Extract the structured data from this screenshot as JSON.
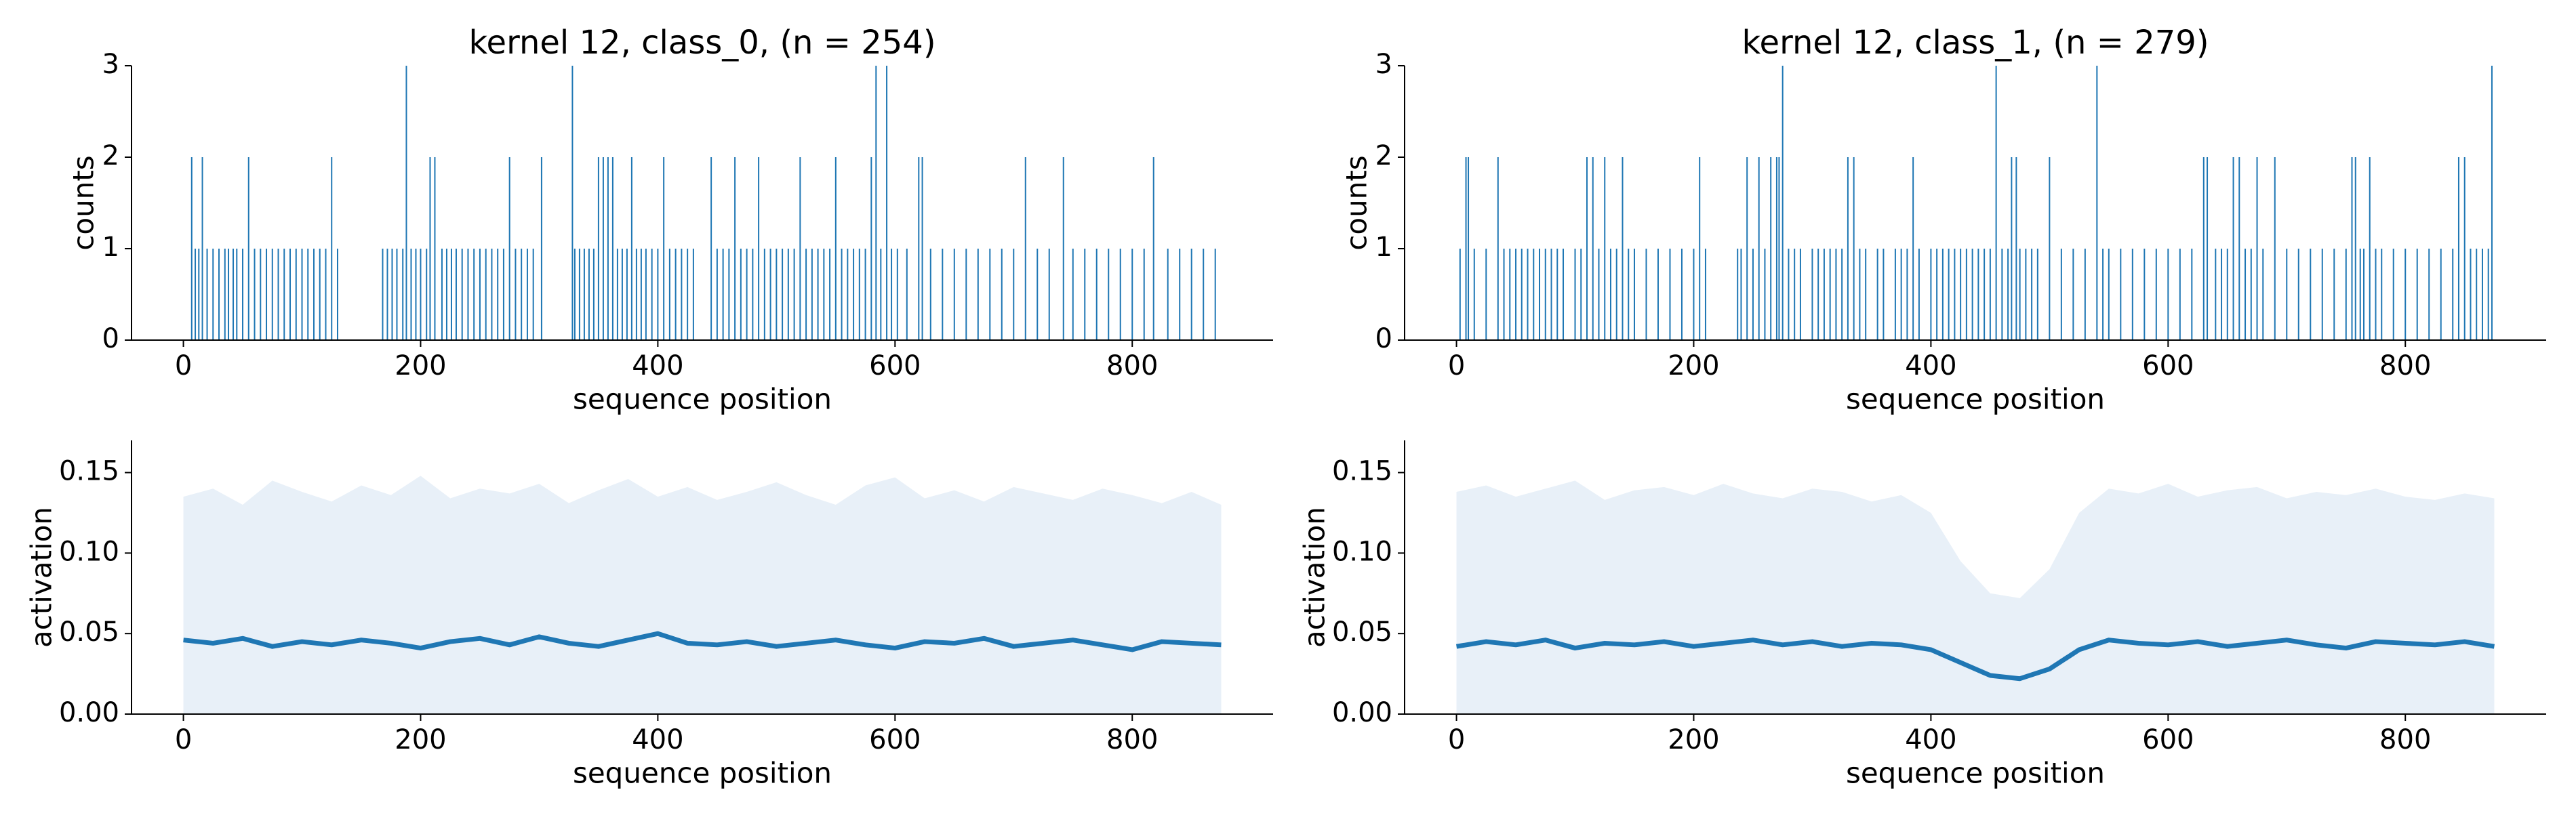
{
  "chart_data": [
    {
      "type": "bar",
      "title": "kernel 12, class_0, (n = 254)",
      "xlabel": "sequence position",
      "ylabel": "counts",
      "color": "#1f77b4",
      "x": [
        7,
        10,
        13,
        16,
        20,
        25,
        30,
        35,
        38,
        42,
        45,
        50,
        55,
        60,
        65,
        70,
        75,
        80,
        85,
        90,
        95,
        100,
        105,
        110,
        115,
        120,
        125,
        130,
        168,
        172,
        176,
        180,
        185,
        188,
        192,
        196,
        200,
        205,
        208,
        212,
        218,
        222,
        226,
        230,
        235,
        240,
        245,
        250,
        255,
        260,
        265,
        270,
        275,
        280,
        285,
        290,
        295,
        302,
        328,
        330,
        334,
        338,
        342,
        346,
        350,
        354,
        358,
        362,
        366,
        370,
        374,
        378,
        382,
        386,
        390,
        395,
        400,
        405,
        410,
        415,
        420,
        425,
        430,
        445,
        450,
        455,
        460,
        465,
        470,
        475,
        480,
        485,
        490,
        495,
        500,
        505,
        510,
        515,
        520,
        525,
        530,
        535,
        540,
        545,
        550,
        555,
        560,
        565,
        570,
        575,
        580,
        584,
        588,
        593,
        597,
        602,
        610,
        620,
        623,
        630,
        640,
        650,
        660,
        670,
        680,
        690,
        700,
        710,
        720,
        730,
        742,
        750,
        760,
        770,
        780,
        790,
        800,
        810,
        818,
        830,
        840,
        850,
        860,
        870
      ],
      "values": [
        2,
        1,
        1,
        2,
        1,
        1,
        1,
        1,
        1,
        1,
        1,
        1,
        2,
        1,
        1,
        1,
        1,
        1,
        1,
        1,
        1,
        1,
        1,
        1,
        1,
        1,
        2,
        1,
        1,
        1,
        1,
        1,
        1,
        3,
        1,
        1,
        1,
        1,
        2,
        2,
        1,
        1,
        1,
        1,
        1,
        1,
        1,
        1,
        1,
        1,
        1,
        1,
        2,
        1,
        1,
        1,
        1,
        2,
        3,
        1,
        1,
        1,
        1,
        1,
        2,
        2,
        2,
        2,
        1,
        1,
        1,
        2,
        1,
        1,
        1,
        1,
        1,
        2,
        1,
        1,
        1,
        1,
        1,
        2,
        1,
        1,
        1,
        2,
        1,
        1,
        1,
        2,
        1,
        1,
        1,
        1,
        1,
        1,
        2,
        1,
        1,
        1,
        1,
        1,
        2,
        1,
        1,
        1,
        1,
        1,
        2,
        3,
        1,
        3,
        1,
        1,
        1,
        2,
        2,
        1,
        1,
        1,
        1,
        1,
        1,
        1,
        1,
        2,
        1,
        1,
        2,
        1,
        1,
        1,
        1,
        1,
        1,
        1,
        2,
        1,
        1,
        1,
        1,
        1
      ],
      "xlim": [
        -43.75,
        918.75
      ],
      "ylim": [
        0,
        3
      ],
      "xticks": [
        0,
        200,
        400,
        600,
        800
      ],
      "yticks": [
        0,
        1,
        2,
        3
      ]
    },
    {
      "type": "bar",
      "title": "kernel 12, class_1, (n = 279)",
      "xlabel": "sequence position",
      "ylabel": "counts",
      "color": "#1f77b4",
      "x": [
        3,
        8,
        10,
        15,
        25,
        35,
        40,
        45,
        50,
        55,
        60,
        65,
        70,
        75,
        80,
        85,
        90,
        100,
        105,
        110,
        115,
        120,
        125,
        130,
        135,
        140,
        145,
        150,
        160,
        170,
        180,
        190,
        200,
        205,
        210,
        237,
        240,
        245,
        250,
        255,
        260,
        265,
        270,
        272,
        275,
        280,
        285,
        290,
        300,
        305,
        310,
        315,
        320,
        325,
        330,
        335,
        340,
        345,
        355,
        360,
        370,
        375,
        380,
        385,
        390,
        400,
        405,
        410,
        415,
        420,
        425,
        430,
        435,
        440,
        445,
        450,
        455,
        460,
        465,
        468,
        472,
        475,
        480,
        485,
        490,
        500,
        510,
        520,
        530,
        540,
        545,
        550,
        560,
        570,
        580,
        590,
        600,
        610,
        620,
        630,
        633,
        640,
        645,
        650,
        655,
        660,
        665,
        670,
        675,
        680,
        690,
        700,
        710,
        720,
        730,
        740,
        750,
        755,
        758,
        762,
        765,
        770,
        775,
        780,
        790,
        800,
        810,
        820,
        830,
        840,
        845,
        850,
        855,
        860,
        865,
        870,
        873
      ],
      "values": [
        1,
        2,
        2,
        1,
        1,
        2,
        1,
        1,
        1,
        1,
        1,
        1,
        1,
        1,
        1,
        1,
        1,
        1,
        1,
        2,
        2,
        1,
        2,
        1,
        1,
        2,
        1,
        1,
        1,
        1,
        1,
        1,
        1,
        2,
        1,
        1,
        1,
        2,
        1,
        2,
        1,
        2,
        2,
        2,
        3,
        1,
        1,
        1,
        1,
        1,
        1,
        1,
        1,
        1,
        2,
        2,
        1,
        1,
        1,
        1,
        1,
        1,
        1,
        2,
        1,
        1,
        1,
        1,
        1,
        1,
        1,
        1,
        1,
        1,
        1,
        1,
        3,
        1,
        1,
        2,
        2,
        1,
        1,
        1,
        1,
        2,
        1,
        1,
        1,
        3,
        1,
        1,
        1,
        1,
        1,
        1,
        1,
        1,
        1,
        2,
        2,
        1,
        1,
        1,
        2,
        2,
        1,
        1,
        2,
        1,
        2,
        1,
        1,
        1,
        1,
        1,
        1,
        2,
        2,
        1,
        1,
        2,
        1,
        1,
        1,
        1,
        1,
        1,
        1,
        1,
        2,
        2,
        1,
        1,
        1,
        1,
        3
      ],
      "xlim": [
        -43.75,
        918.75
      ],
      "ylim": [
        0,
        3
      ],
      "xticks": [
        0,
        200,
        400,
        600,
        800
      ],
      "yticks": [
        0,
        1,
        2,
        3
      ]
    },
    {
      "type": "line",
      "xlabel": "sequence position",
      "ylabel": "activation",
      "color": "#1f77b4",
      "band_color": "#e8f0f8",
      "x": [
        0,
        25,
        50,
        75,
        100,
        125,
        150,
        175,
        200,
        225,
        250,
        275,
        300,
        325,
        350,
        375,
        400,
        425,
        450,
        475,
        500,
        525,
        550,
        575,
        600,
        625,
        650,
        675,
        700,
        725,
        750,
        775,
        800,
        825,
        850,
        875
      ],
      "values": [
        0.046,
        0.044,
        0.047,
        0.042,
        0.045,
        0.043,
        0.046,
        0.044,
        0.041,
        0.045,
        0.047,
        0.043,
        0.048,
        0.044,
        0.042,
        0.046,
        0.05,
        0.044,
        0.043,
        0.045,
        0.042,
        0.044,
        0.046,
        0.043,
        0.041,
        0.045,
        0.044,
        0.047,
        0.042,
        0.044,
        0.046,
        0.043,
        0.04,
        0.045,
        0.044,
        0.043
      ],
      "band_upper": [
        0.135,
        0.14,
        0.13,
        0.145,
        0.138,
        0.132,
        0.142,
        0.136,
        0.148,
        0.134,
        0.14,
        0.137,
        0.143,
        0.131,
        0.139,
        0.146,
        0.135,
        0.141,
        0.133,
        0.138,
        0.144,
        0.136,
        0.13,
        0.142,
        0.147,
        0.134,
        0.139,
        0.132,
        0.141,
        0.137,
        0.133,
        0.14,
        0.136,
        0.131,
        0.138,
        0.13
      ],
      "xlim": [
        -43.75,
        918.75
      ],
      "ylim": [
        0,
        0.17
      ],
      "xticks": [
        0,
        200,
        400,
        600,
        800
      ],
      "yticks": [
        {
          "value": 0,
          "label": "0.00"
        },
        0.05,
        {
          "value": 0.1,
          "label": "0.10"
        },
        0.15
      ]
    },
    {
      "type": "line",
      "xlabel": "sequence position",
      "ylabel": "activation",
      "color": "#1f77b4",
      "band_color": "#e8f0f8",
      "x": [
        0,
        25,
        50,
        75,
        100,
        125,
        150,
        175,
        200,
        225,
        250,
        275,
        300,
        325,
        350,
        375,
        400,
        425,
        450,
        475,
        500,
        525,
        550,
        575,
        600,
        625,
        650,
        675,
        700,
        725,
        750,
        775,
        800,
        825,
        850,
        875
      ],
      "values": [
        0.042,
        0.045,
        0.043,
        0.046,
        0.041,
        0.044,
        0.043,
        0.045,
        0.042,
        0.044,
        0.046,
        0.043,
        0.045,
        0.042,
        0.044,
        0.043,
        0.04,
        0.032,
        0.024,
        0.022,
        0.028,
        0.04,
        0.046,
        0.044,
        0.043,
        0.045,
        0.042,
        0.044,
        0.046,
        0.043,
        0.041,
        0.045,
        0.044,
        0.043,
        0.045,
        0.042
      ],
      "band_upper": [
        0.138,
        0.142,
        0.135,
        0.14,
        0.145,
        0.133,
        0.139,
        0.141,
        0.136,
        0.143,
        0.137,
        0.134,
        0.14,
        0.138,
        0.132,
        0.136,
        0.125,
        0.095,
        0.075,
        0.072,
        0.09,
        0.125,
        0.14,
        0.137,
        0.143,
        0.135,
        0.139,
        0.141,
        0.134,
        0.138,
        0.136,
        0.14,
        0.135,
        0.133,
        0.137,
        0.134
      ],
      "xlim": [
        -43.75,
        918.75
      ],
      "ylim": [
        0,
        0.17
      ],
      "xticks": [
        0,
        200,
        400,
        600,
        800
      ],
      "yticks": [
        {
          "value": 0,
          "label": "0.00"
        },
        0.05,
        {
          "value": 0.1,
          "label": "0.10"
        },
        0.15
      ]
    }
  ]
}
